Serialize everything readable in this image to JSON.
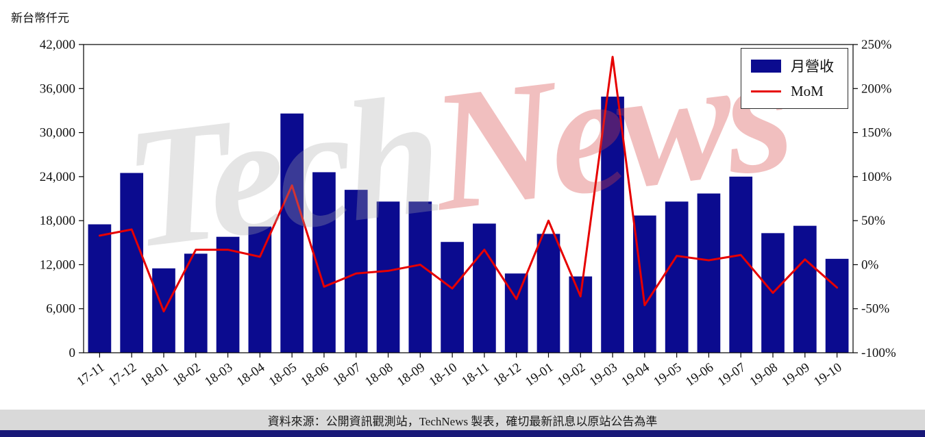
{
  "chart": {
    "unit_label": "新台幣仟元",
    "watermark": {
      "tech": "Tech",
      "news": "News"
    }
  },
  "chart_data": {
    "type": "bar+line",
    "title": "",
    "categories": [
      "17-11",
      "17-12",
      "18-01",
      "18-02",
      "18-03",
      "18-04",
      "18-05",
      "18-06",
      "18-07",
      "18-08",
      "18-09",
      "18-10",
      "18-11",
      "18-12",
      "19-01",
      "19-02",
      "19-03",
      "19-04",
      "19-05",
      "19-06",
      "19-07",
      "19-08",
      "19-09",
      "19-10"
    ],
    "series": [
      {
        "name": "月營收",
        "type": "bar",
        "axis": "left",
        "color": "#0b0b8f",
        "values": [
          17500,
          24500,
          11500,
          13500,
          15800,
          17200,
          32600,
          24600,
          22200,
          20600,
          20600,
          15100,
          17600,
          10800,
          16200,
          10400,
          34900,
          18700,
          20600,
          21700,
          24000,
          16300,
          17300,
          12800
        ]
      },
      {
        "name": "MoM",
        "type": "line",
        "axis": "right",
        "color": "#e60000",
        "values": [
          33,
          40,
          -53,
          17,
          17,
          9,
          90,
          -25,
          -10,
          -7,
          0,
          -27,
          17,
          -39,
          50,
          -36,
          236,
          -46,
          10,
          5,
          11,
          -32,
          6,
          -26
        ]
      }
    ],
    "left_axis": {
      "label": "新台幣仟元",
      "min": 0,
      "max": 42000,
      "ticks": [
        0,
        6000,
        12000,
        18000,
        24000,
        30000,
        36000,
        42000
      ],
      "tick_labels": [
        "0",
        "6,000",
        "12,000",
        "18,000",
        "24,000",
        "30,000",
        "36,000",
        "42,000"
      ]
    },
    "right_axis": {
      "label": "",
      "min": -100,
      "max": 250,
      "ticks": [
        -100,
        -50,
        0,
        50,
        100,
        150,
        200,
        250
      ],
      "tick_labels": [
        "-100%",
        "-50%",
        "0%",
        "50%",
        "100%",
        "150%",
        "200%",
        "250%"
      ]
    },
    "legend_position": "top-right",
    "grid": false
  },
  "footer": {
    "source_text": "資料來源：公開資訊觀測站，TechNews 製表，確切最新訊息以原站公告為準"
  },
  "colors": {
    "bar": "#0b0b8f",
    "line": "#e60000",
    "axis": "#000000",
    "tick_text": "#111111",
    "footer_band": "#d9d9d9",
    "bottom_bar": "#181878"
  }
}
